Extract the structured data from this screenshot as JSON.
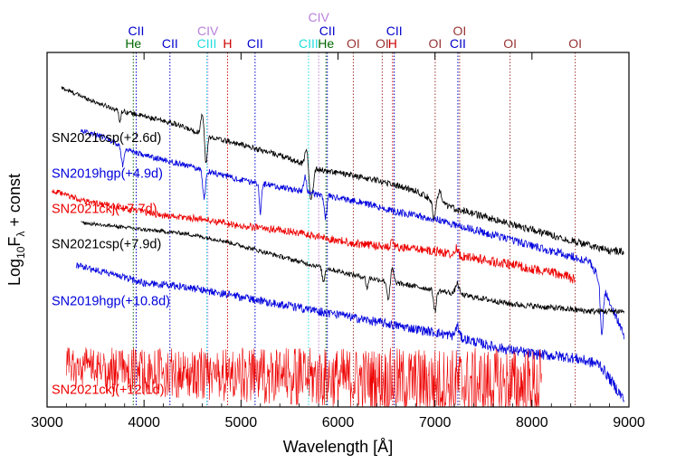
{
  "chart_data": {
    "type": "line",
    "xlabel": "Wavelength [Å]",
    "ylabel_parts": {
      "main": "Log",
      "sub": "10",
      "mid": "F",
      "sub2": "λ",
      "tail": " + const"
    },
    "xlim": [
      3000,
      9000
    ],
    "ylim": [
      0,
      100
    ],
    "xticks": [
      3000,
      4000,
      5000,
      6000,
      7000,
      8000,
      9000
    ],
    "grid": false,
    "colors": {
      "black": "#000000",
      "blue": "#0000dd",
      "red": "#ee0000"
    },
    "series": [
      {
        "name": "SN2021csp(+2.6d)",
        "color": "#000000",
        "x_range": [
          3150,
          8950
        ],
        "noise": 0.6,
        "label_x": 3050,
        "label_y": 76,
        "x": [
          3150,
          3500,
          3700,
          4000,
          4300,
          4500,
          4700,
          5000,
          5400,
          5600,
          5800,
          6000,
          6400,
          6800,
          7000,
          7200,
          7600,
          8000,
          8400,
          8800,
          8950
        ],
        "y": [
          90,
          86,
          84,
          82,
          80,
          78,
          76,
          74,
          71,
          69,
          67,
          66,
          64,
          61,
          58,
          56,
          53,
          50,
          47,
          44,
          44
        ],
        "features": [
          {
            "x": 3750,
            "depth": 3,
            "width": 15
          },
          {
            "x": 4600,
            "depth": -6,
            "width": 20
          },
          {
            "x": 4640,
            "depth": 8,
            "width": 18
          },
          {
            "x": 5680,
            "depth": -6,
            "width": 25
          },
          {
            "x": 5720,
            "depth": 10,
            "width": 30
          },
          {
            "x": 6990,
            "depth": 5,
            "width": 20
          },
          {
            "x": 7050,
            "depth": -3,
            "width": 25
          }
        ]
      },
      {
        "name": "SN2019hgp(+4.9d)",
        "color": "#0000dd",
        "x_range": [
          3350,
          8950
        ],
        "noise": 0.7,
        "label_x": 3050,
        "label_y": 66,
        "x": [
          3350,
          3600,
          3800,
          4000,
          4300,
          4600,
          5000,
          5400,
          5800,
          6200,
          6600,
          7000,
          7400,
          7800,
          8200,
          8600,
          8800,
          8950
        ],
        "y": [
          78,
          76,
          73,
          71,
          69,
          67,
          64,
          62,
          60,
          58,
          55,
          53,
          50,
          47,
          44,
          41,
          30,
          20
        ],
        "features": [
          {
            "x": 3780,
            "depth": 5,
            "width": 20
          },
          {
            "x": 4620,
            "depth": 8,
            "width": 20
          },
          {
            "x": 5200,
            "depth": 8,
            "width": 15
          },
          {
            "x": 5660,
            "depth": -4,
            "width": 20
          },
          {
            "x": 5870,
            "depth": 6,
            "width": 20
          },
          {
            "x": 8720,
            "depth": 14,
            "width": 20
          }
        ]
      },
      {
        "name": "SN2021ckj(+7.7d)",
        "color": "#ee0000",
        "x_range": [
          3050,
          8450
        ],
        "noise": 0.8,
        "label_x": 3050,
        "label_y": 56,
        "x": [
          3050,
          3400,
          3800,
          4200,
          4600,
          5000,
          5400,
          5800,
          6200,
          6600,
          7000,
          7400,
          7800,
          8200,
          8450
        ],
        "y": [
          61,
          58,
          56,
          54,
          53,
          51,
          50,
          48,
          46,
          45,
          44,
          42,
          40,
          38,
          36
        ],
        "features": [
          {
            "x": 6560,
            "depth": -2,
            "width": 20
          },
          {
            "x": 7220,
            "depth": -2,
            "width": 20
          }
        ]
      },
      {
        "name": "SN2021csp(+7.9d)",
        "color": "#000000",
        "x_range": [
          3350,
          8950
        ],
        "noise": 0.5,
        "label_x": 3050,
        "label_y": 46,
        "x": [
          3350,
          3700,
          4000,
          4400,
          4800,
          5200,
          5600,
          5900,
          6200,
          6600,
          7000,
          7400,
          7800,
          8200,
          8600,
          8950
        ],
        "y": [
          52,
          51,
          50,
          49,
          47,
          44,
          41,
          39,
          37,
          35,
          33,
          31,
          29,
          28,
          27,
          27
        ],
        "features": [
          {
            "x": 5850,
            "depth": 4,
            "width": 18
          },
          {
            "x": 6300,
            "depth": 3,
            "width": 15
          },
          {
            "x": 6520,
            "depth": 5,
            "width": 20
          },
          {
            "x": 6560,
            "depth": -4,
            "width": 20
          },
          {
            "x": 7000,
            "depth": 6,
            "width": 20
          },
          {
            "x": 7230,
            "depth": -3,
            "width": 25
          }
        ]
      },
      {
        "name": "SN2019hgp(+10.8d)",
        "color": "#0000dd",
        "x_range": [
          3300,
          8950
        ],
        "noise": 0.9,
        "label_x": 3050,
        "label_y": 30,
        "x": [
          3300,
          3600,
          4000,
          4400,
          4800,
          5200,
          5600,
          6000,
          6400,
          6800,
          7200,
          7600,
          8000,
          8400,
          8700,
          8950
        ],
        "y": [
          40,
          38,
          35,
          34,
          32,
          30,
          28,
          26,
          24,
          22,
          20,
          17,
          15,
          14,
          12,
          2
        ],
        "features": [
          {
            "x": 7230,
            "depth": -3,
            "width": 25
          }
        ]
      },
      {
        "name": "SN2021ckj(+12.1d)",
        "color": "#ee0000",
        "x_range": [
          3200,
          8100
        ],
        "noise": 6,
        "label_x": 3050,
        "label_y": 5,
        "x": [
          3200,
          4000,
          5000,
          6000,
          7000,
          8000,
          8100
        ],
        "y": [
          11,
          10,
          9,
          8,
          7,
          6,
          6
        ],
        "features": []
      }
    ],
    "line_markers": [
      {
        "label": "CII",
        "x": 3919,
        "color": "#0000cc",
        "row": 1
      },
      {
        "label": "He",
        "x": 3889,
        "color": "#006600",
        "row": 2
      },
      {
        "label": "CII",
        "x": 4267,
        "color": "#0000cc",
        "row": 2
      },
      {
        "label": "CIV",
        "x": 4658,
        "color": "#b87fdc",
        "row": 1
      },
      {
        "label": "CIII",
        "x": 4647,
        "color": "#22dddd",
        "row": 2
      },
      {
        "label": "H",
        "x": 4861,
        "color": "#cc0000",
        "row": 2
      },
      {
        "label": "CII",
        "x": 5145,
        "color": "#0000cc",
        "row": 2
      },
      {
        "label": "CIV",
        "x": 5801,
        "color": "#b87fdc",
        "row": 0
      },
      {
        "label": "CII",
        "x": 5890,
        "color": "#0000cc",
        "row": 1
      },
      {
        "label": "CIII",
        "x": 5696,
        "color": "#22dddd",
        "row": 2
      },
      {
        "label": "He",
        "x": 5876,
        "color": "#006600",
        "row": 2
      },
      {
        "label": "OI",
        "x": 6158,
        "color": "#993333",
        "row": 2
      },
      {
        "label": "OI",
        "x": 6456,
        "color": "#993333",
        "row": 2
      },
      {
        "label": "CII",
        "x": 6580,
        "color": "#0000cc",
        "row": 1
      },
      {
        "label": "H",
        "x": 6563,
        "color": "#cc0000",
        "row": 2
      },
      {
        "label": "OI",
        "x": 7002,
        "color": "#993333",
        "row": 2
      },
      {
        "label": "OI",
        "x": 7254,
        "color": "#993333",
        "row": 1
      },
      {
        "label": "CII",
        "x": 7236,
        "color": "#0000cc",
        "row": 2
      },
      {
        "label": "OI",
        "x": 7774,
        "color": "#993333",
        "row": 2
      },
      {
        "label": "OI",
        "x": 8446,
        "color": "#993333",
        "row": 2
      }
    ]
  }
}
